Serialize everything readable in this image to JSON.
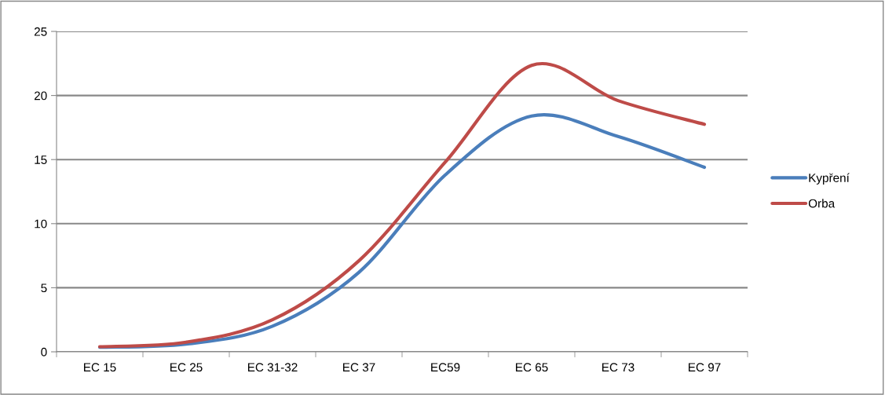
{
  "chart_data": {
    "type": "line",
    "categories": [
      "EC 15",
      "EC 25",
      "EC 31-32",
      "EC 37",
      "EC59",
      "EC 65",
      "EC 73",
      "EC 97"
    ],
    "series": [
      {
        "name": "Kypření",
        "color": "#4a7ebb",
        "values": [
          0.35,
          0.6,
          2.0,
          6.2,
          13.8,
          18.4,
          16.8,
          14.4
        ]
      },
      {
        "name": "Orba",
        "color": "#be4b48",
        "values": [
          0.4,
          0.75,
          2.5,
          7.1,
          14.8,
          22.35,
          19.6,
          17.75
        ]
      }
    ],
    "ylim": [
      0,
      25
    ],
    "yticks": [
      0,
      5,
      10,
      15,
      20,
      25
    ],
    "grid": "y",
    "legend": "right",
    "marker": "none",
    "line_style": "solid"
  }
}
